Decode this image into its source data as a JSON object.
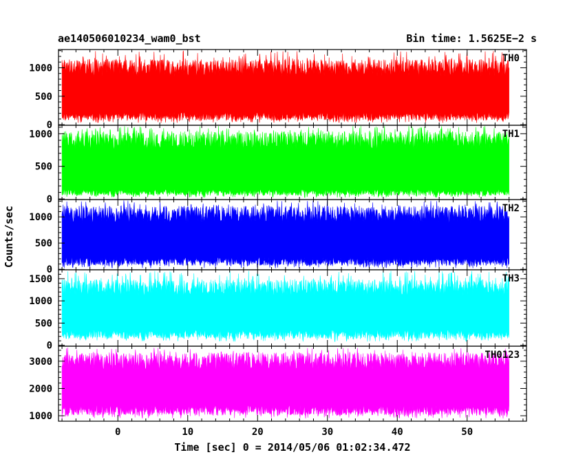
{
  "header": {
    "left_title": "ae140506010234_wam0_bst",
    "right_title": "Bin time: 1.5625E−2 s"
  },
  "chart_data": {
    "type": "line",
    "xlabel": "Time [sec] 0 = 2014/05/06 01:02:34.472",
    "ylabel": "Counts/sec",
    "xlim": [
      -8.5,
      58.5
    ],
    "x_ticks": [
      0,
      10,
      20,
      30,
      40,
      50
    ],
    "x_start": -8.0,
    "x_end": 56.0,
    "bin_time": 0.015625,
    "panels": [
      {
        "name": "TH0",
        "color": "#ff0000",
        "ylim": [
          -10,
          1320
        ],
        "y_ticks": [
          0,
          500,
          1000
        ],
        "typical_low": 150,
        "typical_high": 1000,
        "min": 30,
        "max": 1300
      },
      {
        "name": "TH1",
        "color": "#00ff00",
        "ylim": [
          -10,
          1130
        ],
        "y_ticks": [
          0,
          500,
          1000
        ],
        "typical_low": 100,
        "typical_high": 900,
        "min": 20,
        "max": 1120
      },
      {
        "name": "TH2",
        "color": "#0000ff",
        "ylim": [
          -10,
          1330
        ],
        "y_ticks": [
          0,
          500,
          1000
        ],
        "typical_low": 150,
        "typical_high": 1050,
        "min": 20,
        "max": 1320
      },
      {
        "name": "TH3",
        "color": "#00ffff",
        "ylim": [
          -20,
          1700
        ],
        "y_ticks": [
          0,
          500,
          1000,
          1500
        ],
        "typical_low": 250,
        "typical_high": 1300,
        "min": 80,
        "max": 1680
      },
      {
        "name": "TH0123",
        "color": "#ff00ff",
        "ylim": [
          800,
          3550
        ],
        "y_ticks": [
          1000,
          2000,
          3000
        ],
        "typical_low": 1200,
        "typical_high": 3000,
        "min": 900,
        "max": 3500
      }
    ]
  }
}
